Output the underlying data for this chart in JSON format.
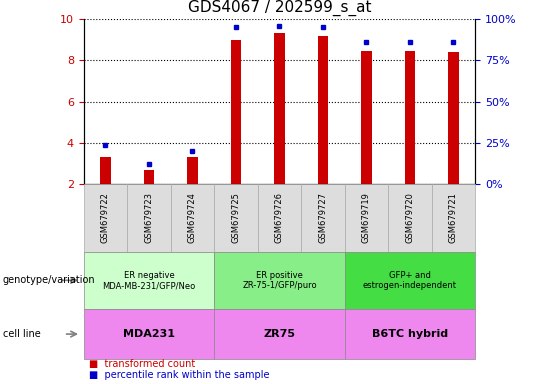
{
  "title": "GDS4067 / 202599_s_at",
  "samples": [
    "GSM679722",
    "GSM679723",
    "GSM679724",
    "GSM679725",
    "GSM679726",
    "GSM679727",
    "GSM679719",
    "GSM679720",
    "GSM679721"
  ],
  "red_values": [
    3.3,
    2.7,
    3.3,
    9.0,
    9.35,
    9.2,
    8.45,
    8.45,
    8.4
  ],
  "blue_values": [
    3.9,
    3.0,
    3.6,
    9.6,
    9.65,
    9.6,
    8.9,
    8.9,
    8.9
  ],
  "ylim": [
    2.0,
    10.0
  ],
  "yticks_left": [
    2,
    4,
    6,
    8,
    10
  ],
  "yticks_right": [
    0,
    25,
    50,
    75,
    100
  ],
  "yticks_right_vals": [
    2.0,
    4.0,
    6.0,
    8.0,
    10.0
  ],
  "red_color": "#cc0000",
  "blue_color": "#0000cc",
  "groups": [
    {
      "label": "ER negative\nMDA-MB-231/GFP/Neo",
      "start": 0,
      "end": 3,
      "color": "#ccffcc"
    },
    {
      "label": "ER positive\nZR-75-1/GFP/puro",
      "start": 3,
      "end": 6,
      "color": "#88ee88"
    },
    {
      "label": "GFP+ and\nestrogen-independent",
      "start": 6,
      "end": 9,
      "color": "#44dd44"
    }
  ],
  "cell_lines": [
    {
      "label": "MDA231",
      "start": 0,
      "end": 3,
      "color": "#ee88ee"
    },
    {
      "label": "ZR75",
      "start": 3,
      "end": 6,
      "color": "#ee88ee"
    },
    {
      "label": "B6TC hybrid",
      "start": 6,
      "end": 9,
      "color": "#ee88ee"
    }
  ],
  "genotype_label": "genotype/variation",
  "cellline_label": "cell line",
  "legend_red": "transformed count",
  "legend_blue": "percentile rank within the sample",
  "title_fontsize": 11,
  "axis_label_color_left": "#cc0000",
  "axis_label_color_right": "#0000cc",
  "sample_box_color": "#dddddd",
  "sample_box_edge": "#aaaaaa"
}
